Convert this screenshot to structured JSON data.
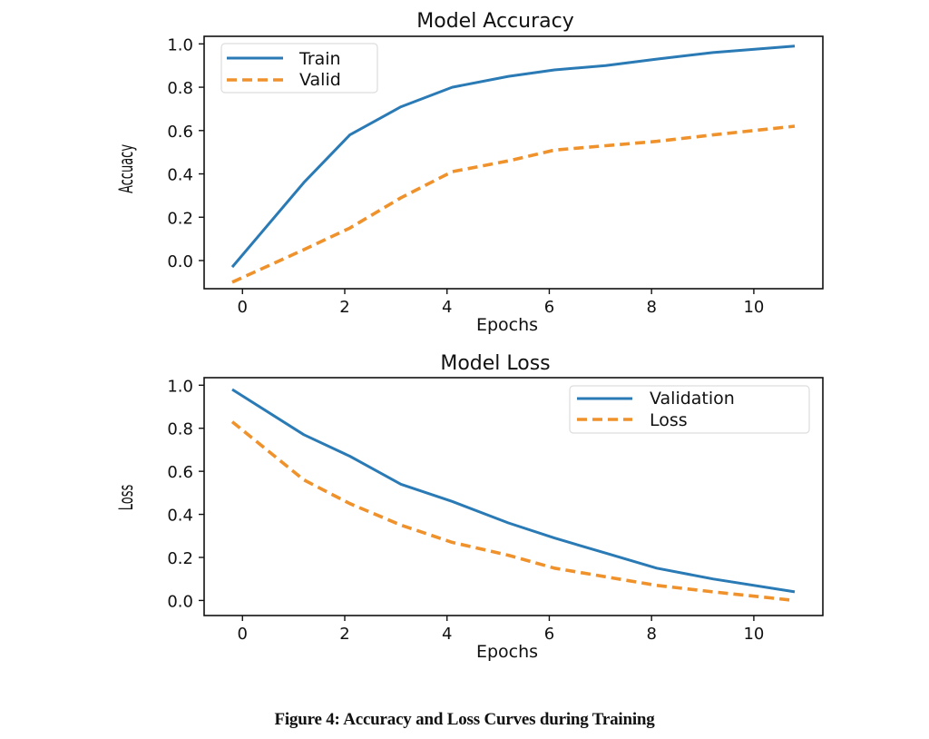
{
  "caption": "Figure 4: Accuracy and Loss Curves during Training",
  "chart_data": [
    {
      "type": "line",
      "title": "Model Accuracy",
      "xlabel": "Epochs",
      "ylabel": "Accuacy",
      "xlim": [
        -0.75,
        11.35
      ],
      "ylim": [
        -0.13,
        1.035
      ],
      "xticks": [
        0,
        2,
        4,
        6,
        8,
        10
      ],
      "xtick_labels": [
        "0",
        "2",
        "4",
        "6",
        "8",
        "10"
      ],
      "yticks": [
        0.0,
        0.2,
        0.4,
        0.6,
        0.8,
        1.0
      ],
      "ytick_labels": [
        "0.0",
        "0.2",
        "0.4",
        "0.6",
        "0.8",
        "1.0"
      ],
      "grid": false,
      "legend_position": "top-left",
      "x": [
        -0.2,
        1.2,
        2.1,
        3.1,
        4.1,
        5.2,
        6.1,
        7.1,
        8.1,
        9.2,
        10.8
      ],
      "series": [
        {
          "name": "Train",
          "color": "#2a7ab5",
          "style": "solid",
          "values": [
            -0.03,
            0.36,
            0.58,
            0.71,
            0.8,
            0.85,
            0.88,
            0.9,
            0.93,
            0.96,
            0.99
          ]
        },
        {
          "name": "Valid",
          "color": "#f0922b",
          "style": "dashed",
          "values": [
            -0.1,
            0.05,
            0.15,
            0.29,
            0.41,
            0.46,
            0.51,
            0.53,
            0.55,
            0.58,
            0.62
          ]
        }
      ]
    },
    {
      "type": "line",
      "title": "Model Loss",
      "xlabel": "Epochs",
      "ylabel": "Loss",
      "xlim": [
        -0.75,
        11.35
      ],
      "ylim": [
        -0.07,
        1.035
      ],
      "xticks": [
        0,
        2,
        4,
        6,
        8,
        10
      ],
      "xtick_labels": [
        "0",
        "2",
        "4",
        "6",
        "8",
        "10"
      ],
      "yticks": [
        0.0,
        0.2,
        0.4,
        0.6,
        0.8,
        1.0
      ],
      "ytick_labels": [
        "0.0",
        "0.2",
        "0.4",
        "0.6",
        "0.8",
        "1.0"
      ],
      "grid": false,
      "legend_position": "top-right",
      "x": [
        -0.2,
        1.2,
        2.1,
        3.1,
        4.1,
        5.2,
        6.1,
        7.1,
        8.1,
        9.2,
        10.8
      ],
      "series": [
        {
          "name": "Validation",
          "color": "#2a7ab5",
          "style": "solid",
          "values": [
            0.98,
            0.77,
            0.67,
            0.54,
            0.46,
            0.36,
            0.29,
            0.22,
            0.15,
            0.1,
            0.04
          ]
        },
        {
          "name": "Loss",
          "color": "#f0922b",
          "style": "dashed",
          "values": [
            0.83,
            0.56,
            0.45,
            0.35,
            0.27,
            0.21,
            0.15,
            0.11,
            0.07,
            0.04,
            0.0
          ]
        }
      ]
    }
  ]
}
